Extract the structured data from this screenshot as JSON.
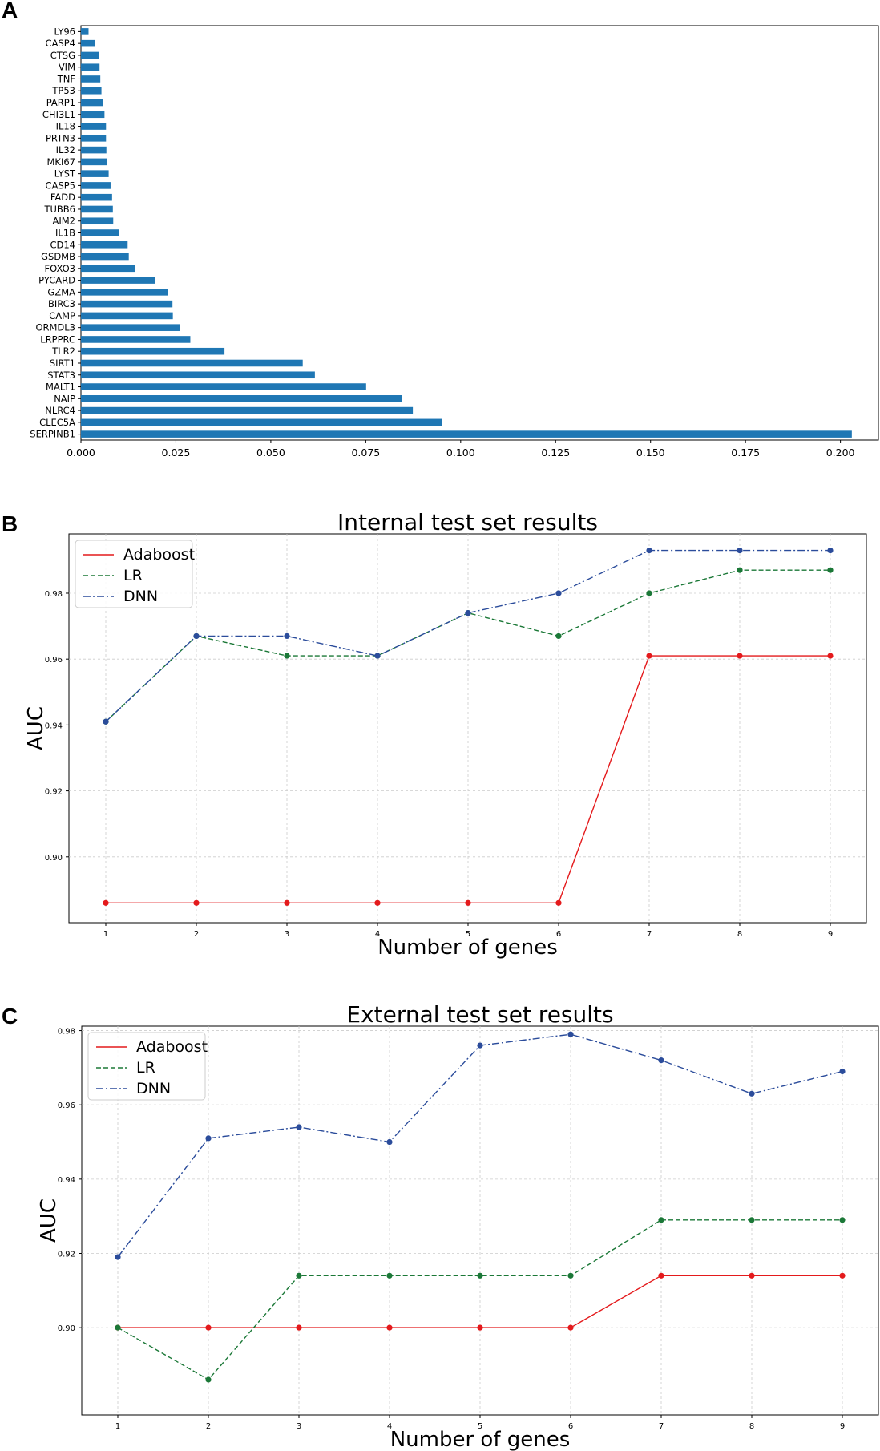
{
  "chart_data": [
    {
      "type": "bar",
      "orientation": "horizontal",
      "panel": "A",
      "title": "",
      "xlabel": "",
      "ylabel": "",
      "xlim": [
        0,
        0.21
      ],
      "xticks": [
        "0.000",
        "0.025",
        "0.050",
        "0.075",
        "0.100",
        "0.125",
        "0.150",
        "0.175",
        "0.200"
      ],
      "color": "#1f77b4",
      "categories": [
        "LY96",
        "CASP4",
        "CTSG",
        "VIM",
        "TNF",
        "TP53",
        "PARP1",
        "CHI3L1",
        "IL18",
        "PRTN3",
        "IL32",
        "MKI67",
        "LYST",
        "CASP5",
        "FADD",
        "TUBB6",
        "AIM2",
        "IL1B",
        "CD14",
        "GSDMB",
        "FOXO3",
        "PYCARD",
        "GZMA",
        "BIRC3",
        "CAMP",
        "ORMDL3",
        "LRPPRC",
        "TLR2",
        "SIRT1",
        "STAT3",
        "MALT1",
        "NAIP",
        "NLRC4",
        "CLEC5A",
        "SERPINB1"
      ],
      "values": [
        0.002,
        0.0038,
        0.0047,
        0.0049,
        0.0051,
        0.0054,
        0.0057,
        0.0062,
        0.0066,
        0.0066,
        0.0067,
        0.0068,
        0.0073,
        0.0078,
        0.0082,
        0.0084,
        0.0085,
        0.0101,
        0.0123,
        0.0126,
        0.0143,
        0.0196,
        0.0229,
        0.0241,
        0.0242,
        0.0261,
        0.0288,
        0.0378,
        0.0584,
        0.0616,
        0.0751,
        0.0846,
        0.0874,
        0.0951,
        0.203
      ]
    },
    {
      "type": "line",
      "panel": "B",
      "title": "Internal test set results",
      "xlabel": "Number of genes",
      "ylabel": "AUC",
      "ylim": [
        0.88,
        0.998
      ],
      "xticks": [
        "1",
        "2",
        "3",
        "4",
        "5",
        "6",
        "7",
        "8",
        "9"
      ],
      "yticks": [
        "0.90",
        "0.92",
        "0.94",
        "0.96",
        "0.98"
      ],
      "x": [
        1,
        2,
        3,
        4,
        5,
        6,
        7,
        8,
        9
      ],
      "grid": true,
      "legend_position": "top-left",
      "series": [
        {
          "name": "Adaboost",
          "color": "#e41a1c",
          "style": "solid",
          "values": [
            0.886,
            0.886,
            0.886,
            0.886,
            0.886,
            0.886,
            0.961,
            0.961,
            0.961
          ]
        },
        {
          "name": "LR",
          "color": "#1b7837",
          "style": "dashed",
          "values": [
            0.941,
            0.967,
            0.961,
            0.961,
            0.974,
            0.967,
            0.98,
            0.987,
            0.987
          ]
        },
        {
          "name": "DNN",
          "color": "#2b4c9b",
          "style": "dashdot",
          "values": [
            0.941,
            0.967,
            0.967,
            0.961,
            0.974,
            0.98,
            0.993,
            0.993,
            0.993
          ]
        }
      ]
    },
    {
      "type": "line",
      "panel": "C",
      "title": "External test set results",
      "xlabel": "Number of genes",
      "ylabel": "AUC",
      "ylim": [
        0.8765,
        0.9812
      ],
      "xticks": [
        "1",
        "2",
        "3",
        "4",
        "5",
        "6",
        "7",
        "8",
        "9"
      ],
      "yticks": [
        "0.90",
        "0.92",
        "0.94",
        "0.96",
        "0.98"
      ],
      "x": [
        1,
        2,
        3,
        4,
        5,
        6,
        7,
        8,
        9
      ],
      "grid": true,
      "legend_position": "top-left",
      "series": [
        {
          "name": "Adaboost",
          "color": "#e41a1c",
          "style": "solid",
          "values": [
            0.9,
            0.9,
            0.9,
            0.9,
            0.9,
            0.9,
            0.914,
            0.914,
            0.914
          ]
        },
        {
          "name": "LR",
          "color": "#1b7837",
          "style": "dashed",
          "values": [
            0.9,
            0.886,
            0.914,
            0.914,
            0.914,
            0.914,
            0.929,
            0.929,
            0.929
          ]
        },
        {
          "name": "DNN",
          "color": "#2b4c9b",
          "style": "dashdot",
          "values": [
            0.919,
            0.951,
            0.954,
            0.95,
            0.976,
            0.979,
            0.972,
            0.963,
            0.969
          ]
        }
      ]
    }
  ]
}
